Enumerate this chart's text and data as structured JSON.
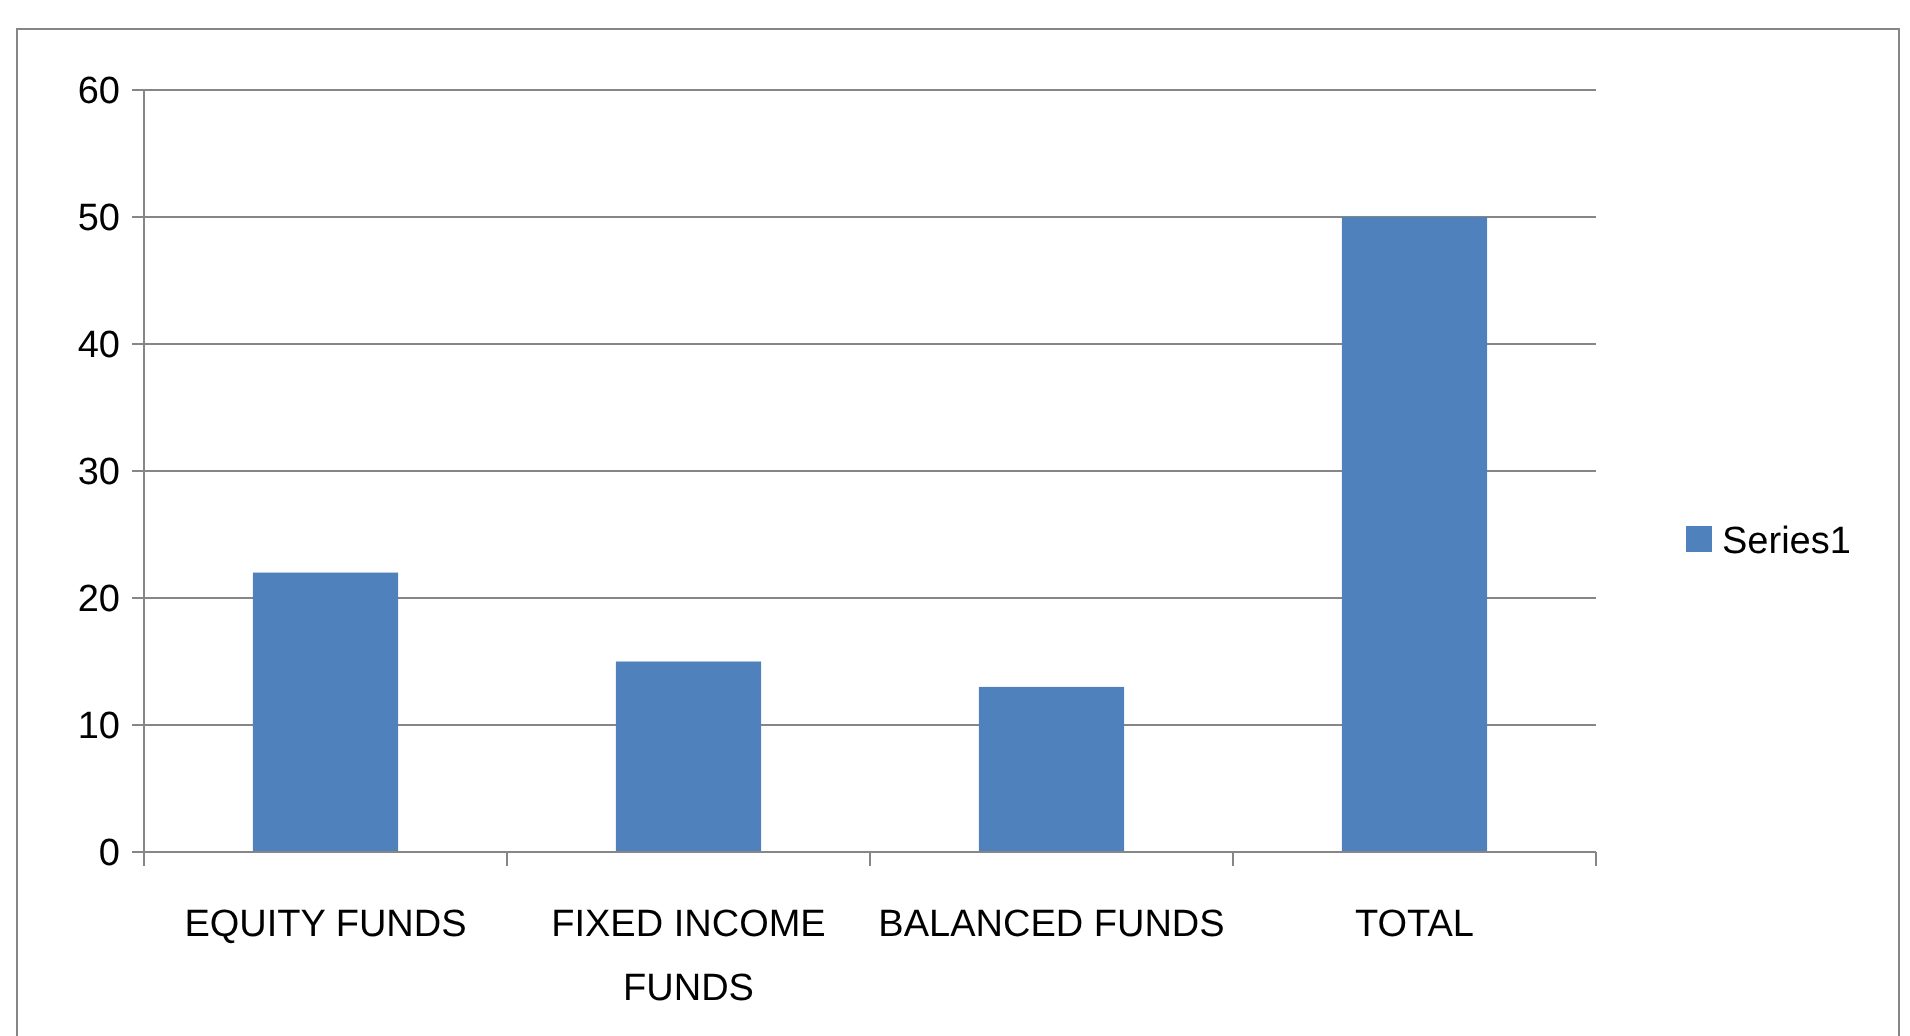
{
  "chart_data": {
    "type": "bar",
    "categories": [
      "EQUITY FUNDS",
      "FIXED INCOME FUNDS",
      "BALANCED FUNDS",
      "TOTAL"
    ],
    "series": [
      {
        "name": "Series1",
        "color": "#4f81bd",
        "values": [
          22,
          15,
          13,
          50
        ]
      }
    ],
    "ylim": [
      0,
      60
    ],
    "yticks": [
      0,
      10,
      20,
      30,
      40,
      50,
      60
    ],
    "grid": "y",
    "legend": "right"
  }
}
